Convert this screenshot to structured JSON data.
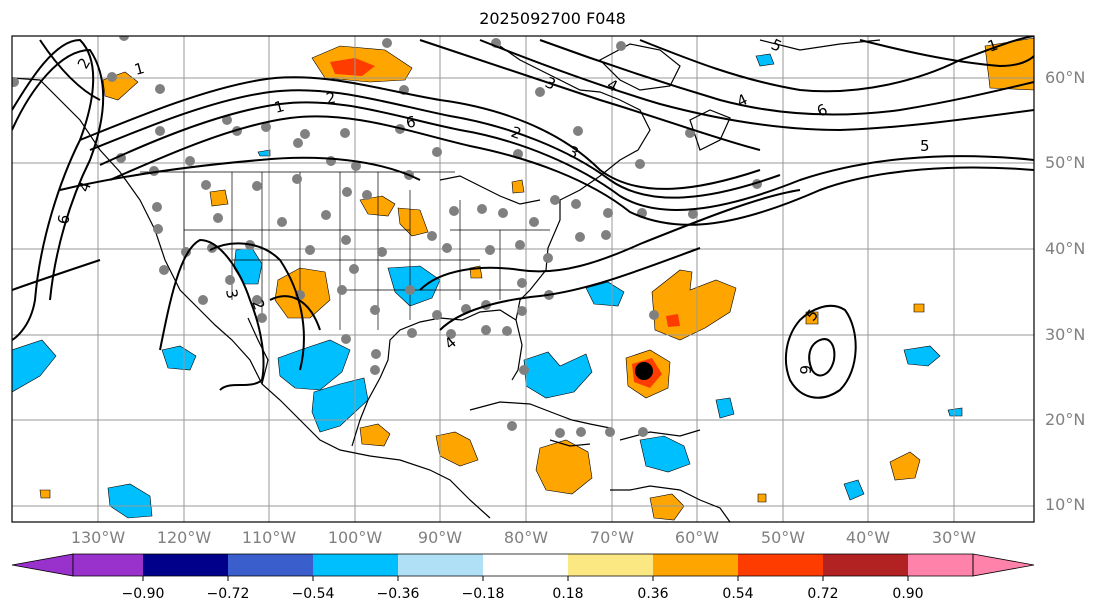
{
  "title": "2025092700 F048",
  "lat_labels": [
    "60°N",
    "50°N",
    "40°N",
    "30°N",
    "20°N",
    "10°N"
  ],
  "lon_labels": [
    "130°W",
    "120°W",
    "110°W",
    "100°W",
    "90°W",
    "80°W",
    "70°W",
    "60°W",
    "50°W",
    "40°W",
    "30°W"
  ],
  "colorbar": {
    "ticks": [
      "−0.90",
      "−0.72",
      "−0.54",
      "−0.36",
      "−0.18",
      "0.18",
      "0.36",
      "0.54",
      "0.72",
      "0.90"
    ],
    "colors": [
      "#9932cc",
      "#00008b",
      "#3a5fcd",
      "#00bfff",
      "#b0e0f5",
      "#ffffff",
      "#fce883",
      "#ffa500",
      "#ff3c00",
      "#b22222",
      "#ff82ab"
    ]
  },
  "contour_labels": [
    "2",
    "4",
    "6",
    "1",
    "2",
    "3",
    "4",
    "5",
    "6",
    "1",
    "2",
    "3",
    "4",
    "5",
    "6",
    "1",
    "2",
    "3",
    "4",
    "5",
    "6",
    "5",
    "4",
    "2",
    "1",
    "2",
    "3",
    "1",
    "1"
  ]
}
